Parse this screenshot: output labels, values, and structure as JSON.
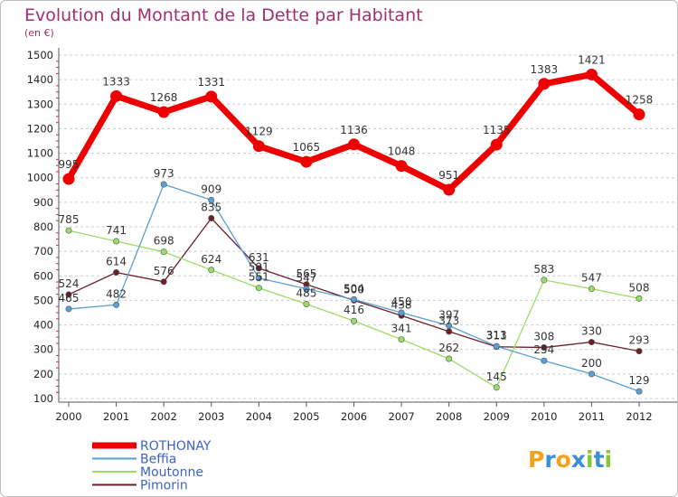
{
  "chart_data": {
    "type": "line",
    "title": "Evolution du Montant de la Dette par Habitant",
    "subtitle": "(en €)",
    "xlabel": "",
    "ylabel": "",
    "x": [
      "2000",
      "2001",
      "2002",
      "2003",
      "2004",
      "2005",
      "2006",
      "2007",
      "2008",
      "2009",
      "2010",
      "2011",
      "2012"
    ],
    "ylim": [
      100,
      1500
    ],
    "yticks": [
      100,
      200,
      300,
      400,
      500,
      600,
      700,
      800,
      900,
      1000,
      1100,
      1200,
      1300,
      1400,
      1500
    ],
    "grid": "horizontal dashed",
    "legend_position": "bottom-left",
    "series": [
      {
        "name": "ROTHONAY",
        "color": "#ee0000",
        "values": [
          995,
          1333,
          1268,
          1331,
          1129,
          1065,
          1136,
          1048,
          951,
          1135,
          1383,
          1421,
          1258
        ]
      },
      {
        "name": "Beffia",
        "color": "#5a9fd4",
        "values": [
          465,
          482,
          973,
          909,
          591,
          547,
          504,
          450,
          397,
          313,
          254,
          200,
          129
        ]
      },
      {
        "name": "Moutonne",
        "color": "#99dd66",
        "values": [
          785,
          741,
          698,
          624,
          551,
          485,
          416,
          341,
          262,
          145,
          583,
          547,
          508
        ]
      },
      {
        "name": "Pimorin",
        "color": "#6b1f2a",
        "values": [
          524,
          614,
          576,
          835,
          631,
          565,
          500,
          438,
          373,
          311,
          308,
          330,
          293
        ]
      }
    ]
  },
  "logo": {
    "text": "Proxiti",
    "letters": [
      "P",
      "r",
      "o",
      "x",
      "i",
      "t",
      "i"
    ],
    "colors": [
      "#f2a31b",
      "#3b8fd4",
      "#f2a31b",
      "#3b8fd4",
      "#8cc43c",
      "#3b8fd4",
      "#8cc43c"
    ]
  }
}
